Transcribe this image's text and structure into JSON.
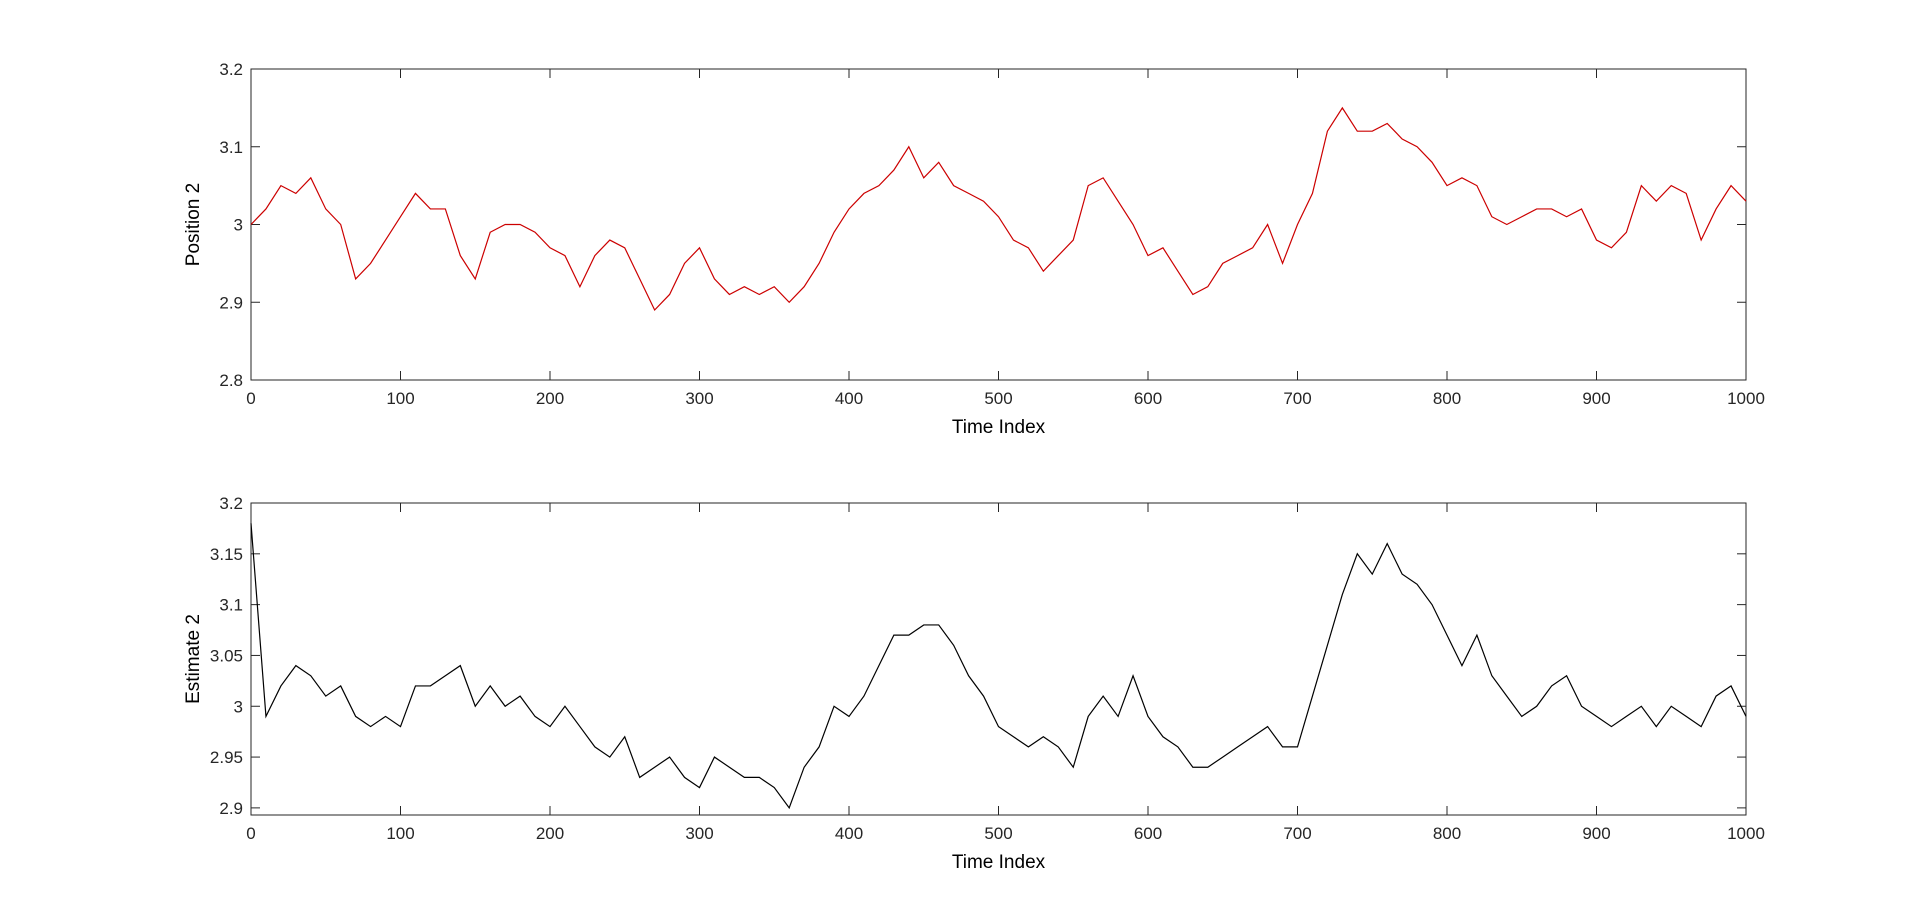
{
  "chart_data": [
    {
      "type": "line",
      "xlabel": "Time Index",
      "ylabel": "Position 2",
      "color": "#cc0000",
      "xlim": [
        0,
        1000
      ],
      "ylim": [
        2.8,
        3.2
      ],
      "xticks": [
        0,
        100,
        200,
        300,
        400,
        500,
        600,
        700,
        800,
        900,
        1000
      ],
      "yticks": [
        2.8,
        2.9,
        3,
        3.1,
        3.2
      ],
      "x": [
        0,
        10,
        20,
        30,
        40,
        50,
        60,
        70,
        80,
        90,
        100,
        110,
        120,
        130,
        140,
        150,
        160,
        170,
        180,
        190,
        200,
        210,
        220,
        230,
        240,
        250,
        260,
        270,
        280,
        290,
        300,
        310,
        320,
        330,
        340,
        350,
        360,
        370,
        380,
        390,
        400,
        410,
        420,
        430,
        440,
        450,
        460,
        470,
        480,
        490,
        500,
        510,
        520,
        530,
        540,
        550,
        560,
        570,
        580,
        590,
        600,
        610,
        620,
        630,
        640,
        650,
        660,
        670,
        680,
        690,
        700,
        710,
        720,
        730,
        740,
        750,
        760,
        770,
        780,
        790,
        800,
        810,
        820,
        830,
        840,
        850,
        860,
        870,
        880,
        890,
        900,
        910,
        920,
        930,
        940,
        950,
        960,
        970,
        980,
        990,
        1000
      ],
      "values": [
        3.0,
        3.02,
        3.05,
        3.04,
        3.06,
        3.02,
        3.0,
        2.93,
        2.95,
        2.98,
        3.01,
        3.04,
        3.02,
        3.02,
        2.96,
        2.93,
        2.99,
        3.0,
        3.0,
        2.99,
        2.97,
        2.96,
        2.92,
        2.96,
        2.98,
        2.97,
        2.93,
        2.89,
        2.91,
        2.95,
        2.97,
        2.93,
        2.91,
        2.92,
        2.91,
        2.92,
        2.9,
        2.92,
        2.95,
        2.99,
        3.02,
        3.04,
        3.05,
        3.07,
        3.1,
        3.06,
        3.08,
        3.05,
        3.04,
        3.03,
        3.01,
        2.98,
        2.97,
        2.94,
        2.96,
        2.98,
        3.05,
        3.06,
        3.03,
        3.0,
        2.96,
        2.97,
        2.94,
        2.91,
        2.92,
        2.95,
        2.96,
        2.97,
        3.0,
        2.95,
        3.0,
        3.04,
        3.12,
        3.15,
        3.12,
        3.12,
        3.13,
        3.11,
        3.1,
        3.08,
        3.05,
        3.06,
        3.05,
        3.01,
        3.0,
        3.01,
        3.02,
        3.02,
        3.01,
        3.02,
        2.98,
        2.97,
        2.99,
        3.05,
        3.03,
        3.05,
        3.04,
        2.98,
        3.02,
        3.05,
        3.03
      ]
    },
    {
      "type": "line",
      "xlabel": "Time Index",
      "ylabel": "Estimate 2",
      "color": "#000000",
      "xlim": [
        0,
        1000
      ],
      "ylim": [
        2.893,
        3.2
      ],
      "xticks": [
        0,
        100,
        200,
        300,
        400,
        500,
        600,
        700,
        800,
        900,
        1000
      ],
      "yticks": [
        2.9,
        2.95,
        3,
        3.05,
        3.1,
        3.15,
        3.2
      ],
      "x": [
        0,
        10,
        20,
        30,
        40,
        50,
        60,
        70,
        80,
        90,
        100,
        110,
        120,
        130,
        140,
        150,
        160,
        170,
        180,
        190,
        200,
        210,
        220,
        230,
        240,
        250,
        260,
        270,
        280,
        290,
        300,
        310,
        320,
        330,
        340,
        350,
        360,
        370,
        380,
        390,
        400,
        410,
        420,
        430,
        440,
        450,
        460,
        470,
        480,
        490,
        500,
        510,
        520,
        530,
        540,
        550,
        560,
        570,
        580,
        590,
        600,
        610,
        620,
        630,
        640,
        650,
        660,
        670,
        680,
        690,
        700,
        710,
        720,
        730,
        740,
        750,
        760,
        770,
        780,
        790,
        800,
        810,
        820,
        830,
        840,
        850,
        860,
        870,
        880,
        890,
        900,
        910,
        920,
        930,
        940,
        950,
        960,
        970,
        980,
        990,
        1000
      ],
      "values": [
        3.18,
        2.99,
        3.02,
        3.04,
        3.03,
        3.01,
        3.02,
        2.99,
        2.98,
        2.99,
        2.98,
        3.02,
        3.02,
        3.03,
        3.04,
        3.0,
        3.02,
        3.0,
        3.01,
        2.99,
        2.98,
        3.0,
        2.98,
        2.96,
        2.95,
        2.97,
        2.93,
        2.94,
        2.95,
        2.93,
        2.92,
        2.95,
        2.94,
        2.93,
        2.93,
        2.92,
        2.9,
        2.94,
        2.96,
        3.0,
        2.99,
        3.01,
        3.04,
        3.07,
        3.07,
        3.08,
        3.08,
        3.06,
        3.03,
        3.01,
        2.98,
        2.97,
        2.96,
        2.97,
        2.96,
        2.94,
        2.99,
        3.01,
        2.99,
        3.03,
        2.99,
        2.97,
        2.96,
        2.94,
        2.94,
        2.95,
        2.96,
        2.97,
        2.98,
        2.96,
        2.96,
        3.01,
        3.06,
        3.11,
        3.15,
        3.13,
        3.16,
        3.13,
        3.12,
        3.1,
        3.07,
        3.04,
        3.07,
        3.03,
        3.01,
        2.99,
        3.0,
        3.02,
        3.03,
        3.0,
        2.99,
        2.98,
        2.99,
        3.0,
        2.98,
        3.0,
        2.99,
        2.98,
        3.01,
        3.02,
        2.99
      ]
    }
  ]
}
